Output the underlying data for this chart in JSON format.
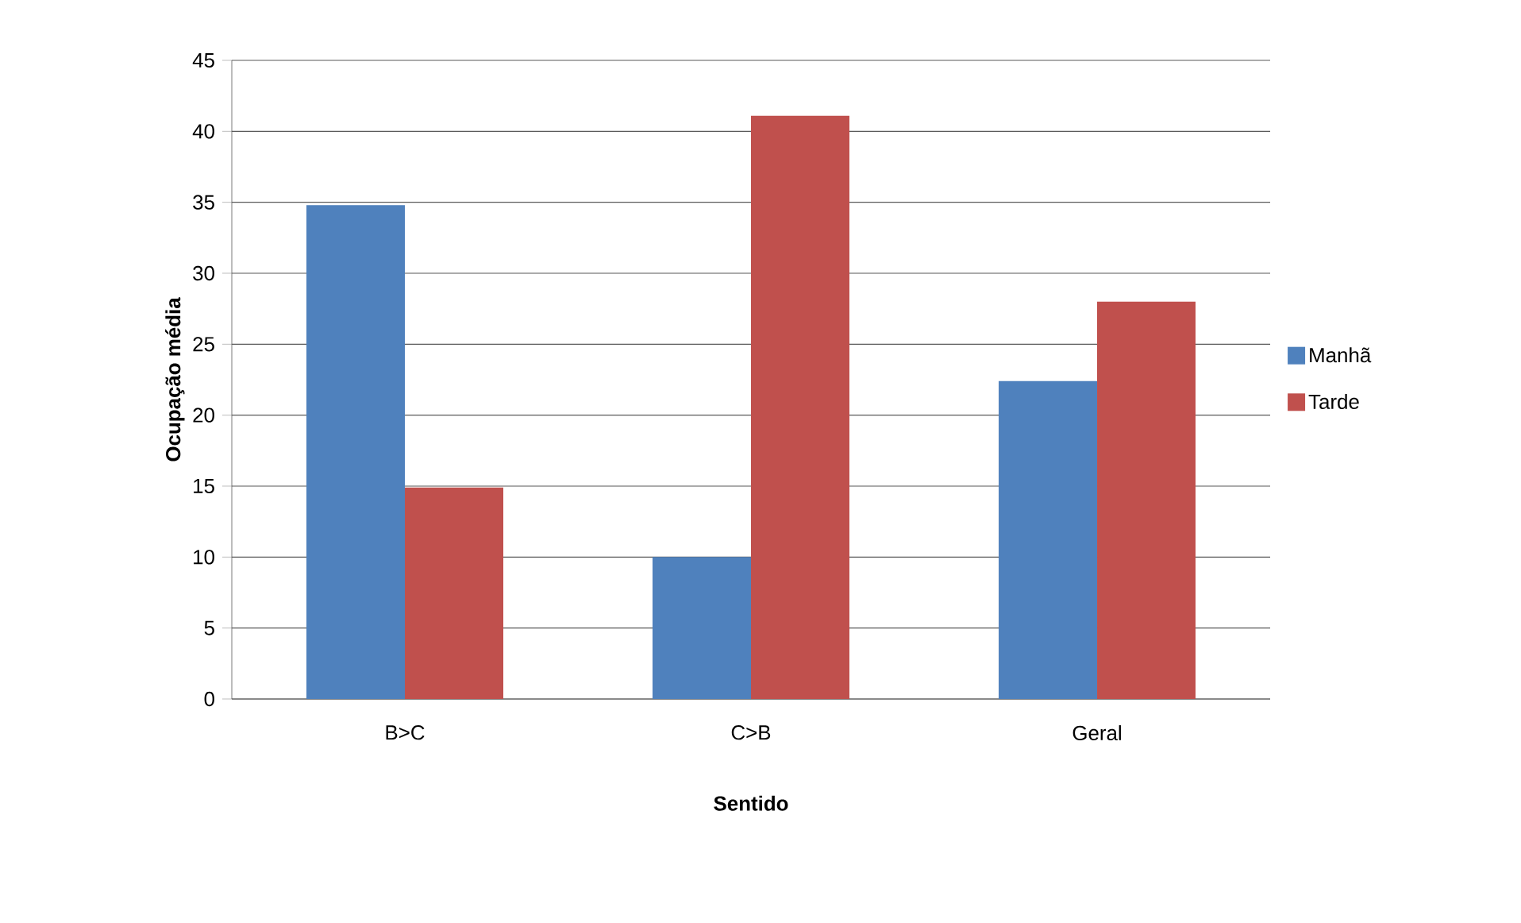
{
  "chart_data": {
    "type": "bar",
    "xlabel": "Sentido",
    "ylabel": "Ocupação média",
    "categories": [
      "B>C",
      "C>B",
      "Geral"
    ],
    "series": [
      {
        "name": "Manhã",
        "color": "#4f81bd",
        "values": [
          34.8,
          10,
          22.4
        ]
      },
      {
        "name": "Tarde",
        "color": "#c0504d",
        "values": [
          14.9,
          41.1,
          28.0
        ]
      }
    ],
    "ylim": [
      0,
      45
    ],
    "yticks": [
      0,
      5,
      10,
      15,
      20,
      25,
      30,
      35,
      40,
      45
    ],
    "grid": "y",
    "legend": "right"
  }
}
